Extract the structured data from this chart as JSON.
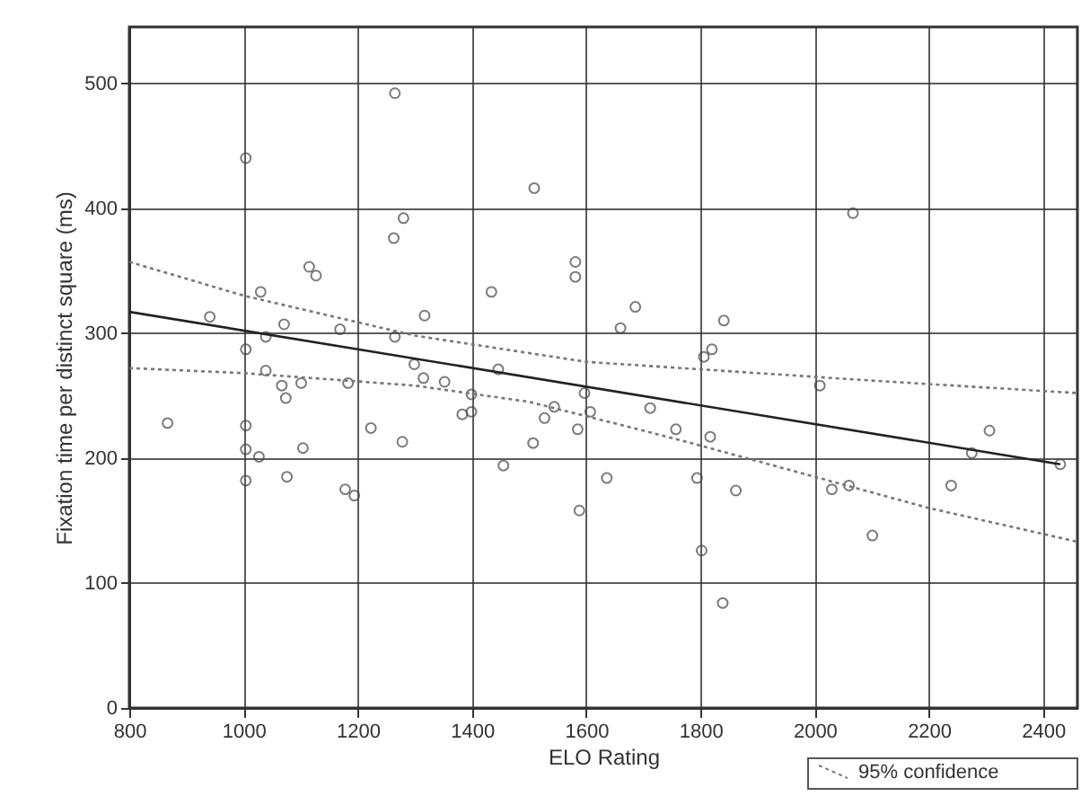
{
  "chart_data": {
    "type": "scatter",
    "xlabel": "ELO Rating",
    "ylabel": "Fixation time per distinct square (ms)",
    "xlim": [
      800,
      2460
    ],
    "ylim": [
      0,
      545
    ],
    "xticks": [
      800,
      1000,
      1200,
      1400,
      1600,
      1800,
      2000,
      2200,
      2400
    ],
    "yticks": [
      0,
      100,
      200,
      300,
      400,
      500
    ],
    "grid": true,
    "legend": "bottom right",
    "marker": "circle",
    "series": [
      {
        "color": "#444444",
        "x": [
          1265,
          1004,
          1509,
          1280,
          1263,
          1115,
          1127,
          1581,
          1581,
          1434,
          1030,
          941,
          1317,
          1071,
          1169,
          1660,
          1265,
          1039,
          1004,
          1299,
          1446,
          1315,
          1352,
          1039,
          1067,
          1074,
          1101,
          1183,
          1597,
          1399,
          1399,
          1383,
          1544,
          1527,
          1607,
          867,
          1004,
          1223,
          1507,
          1585,
          1278,
          1004,
          1027,
          1104,
          1455,
          1636,
          1076,
          1004,
          1178,
          1194,
          1588,
          2067,
          1686,
          1841,
          1820,
          1806,
          2009,
          1712,
          1757,
          1817,
          2306,
          2275,
          2430,
          1794,
          1862,
          2030,
          2060,
          2239,
          2101,
          1802,
          1839
        ],
        "values": [
          492,
          440,
          416,
          392,
          376,
          353,
          346,
          357,
          345,
          333,
          333,
          313,
          314,
          307,
          303,
          304,
          297,
          297,
          287,
          275,
          271,
          264,
          261,
          270,
          258,
          248,
          260,
          260,
          252,
          251,
          237,
          235,
          241,
          232,
          237,
          228,
          226,
          224,
          212,
          223,
          213,
          207,
          201,
          208,
          194,
          184,
          185,
          182,
          175,
          170,
          158,
          396,
          321,
          310,
          287,
          281,
          258,
          240,
          223,
          217,
          222,
          204,
          195,
          184,
          174,
          175,
          178,
          178,
          138,
          126,
          84
        ]
      },
      {
        "type": "line",
        "color": "#222222",
        "line_style": "solid",
        "marker": "none",
        "x": [
          800,
          2430
        ],
        "values": [
          317,
          195
        ]
      },
      {
        "type": "line",
        "name": "95% confidence",
        "color": "#777777",
        "line_style": "dotted",
        "marker": "none",
        "x": [
          800,
          1000,
          1300,
          1600,
          1800,
          2100,
          2460
        ],
        "values": [
          357,
          330,
          298,
          277,
          271,
          262,
          252
        ]
      },
      {
        "type": "line",
        "color": "#777777",
        "line_style": "dotted",
        "marker": "none",
        "x": [
          800,
          1000,
          1300,
          1500,
          1700,
          1800,
          2000,
          2200,
          2460
        ],
        "values": [
          272,
          268,
          258,
          245,
          222,
          210,
          185,
          160,
          133
        ]
      }
    ]
  }
}
